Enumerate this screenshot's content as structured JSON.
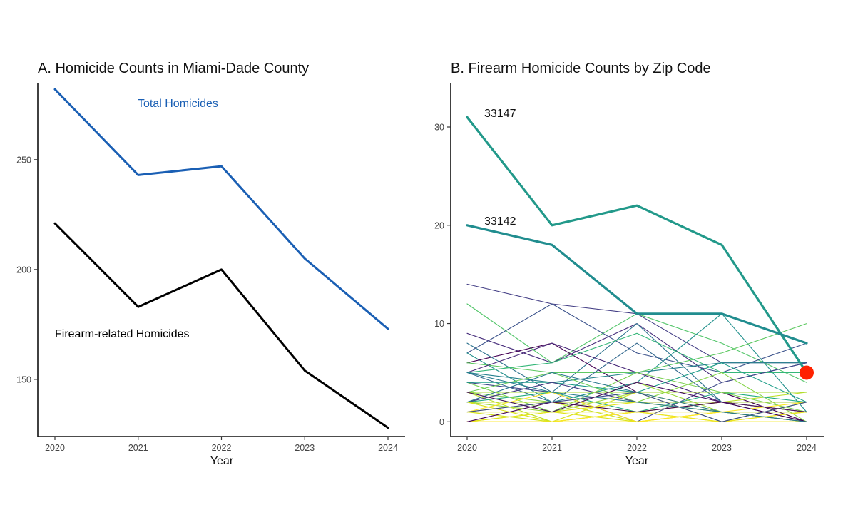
{
  "chart_data": [
    {
      "type": "line",
      "title": "A. Homicide Counts in Miami-Dade County",
      "xlabel": "Year",
      "ylabel": "",
      "x": [
        2020,
        2021,
        2022,
        2023,
        2024
      ],
      "x_ticks": [
        "2020",
        "2021",
        "2022",
        "2023",
        "2024"
      ],
      "y_ticks": [
        "150",
        "200",
        "250"
      ],
      "ylim": [
        124,
        285
      ],
      "grid": false,
      "legend": "none",
      "series": [
        {
          "name": "Total Homicides",
          "values": [
            282,
            243,
            247,
            205,
            173
          ],
          "color": "#1a5fb4"
        },
        {
          "name": "Firearm-related Homicides",
          "values": [
            221,
            183,
            200,
            154,
            128
          ],
          "color": "#000000"
        }
      ]
    },
    {
      "type": "line",
      "title": "B. Firearm Homicide Counts by Zip Code",
      "xlabel": "Year",
      "ylabel": "",
      "x": [
        2020,
        2021,
        2022,
        2023,
        2024
      ],
      "x_ticks": [
        "2020",
        "2021",
        "2022",
        "2023",
        "2024"
      ],
      "y_ticks": [
        "0",
        "10",
        "20",
        "30"
      ],
      "ylim": [
        -1.5,
        34.5
      ],
      "grid": false,
      "legend": "none",
      "highlight_point": {
        "x": 2024,
        "y": 5,
        "color": "#ff2200"
      },
      "series": [
        {
          "name": "33147",
          "values": [
            31,
            20,
            22,
            18,
            5
          ],
          "color": "#22998a",
          "highlight": true
        },
        {
          "name": "33142",
          "values": [
            20,
            18,
            11,
            11,
            8
          ],
          "color": "#218d8f",
          "highlight": true
        },
        {
          "values": [
            14,
            12,
            11,
            6,
            6
          ],
          "color": "#433e85"
        },
        {
          "values": [
            12,
            6,
            11,
            8,
            4
          ],
          "color": "#52c569"
        },
        {
          "values": [
            9,
            6,
            10,
            4,
            6
          ],
          "color": "#472d7b"
        },
        {
          "values": [
            8,
            3,
            10,
            2,
            0
          ],
          "color": "#2c728e"
        },
        {
          "values": [
            7,
            12,
            7,
            5,
            8
          ],
          "color": "#3b528b"
        },
        {
          "values": [
            7,
            2,
            4,
            11,
            1
          ],
          "color": "#21908c"
        },
        {
          "values": [
            6,
            8,
            3,
            3,
            0
          ],
          "color": "#440154"
        },
        {
          "values": [
            6,
            5,
            5,
            7,
            10
          ],
          "color": "#5ec962"
        },
        {
          "values": [
            5,
            8,
            5,
            2,
            1
          ],
          "color": "#482878"
        },
        {
          "values": [
            5,
            2,
            8,
            2,
            2
          ],
          "color": "#31688e"
        },
        {
          "values": [
            5,
            6,
            9,
            5,
            5
          ],
          "color": "#35b779"
        },
        {
          "values": [
            5,
            4,
            5,
            6,
            6
          ],
          "color": "#26828e"
        },
        {
          "values": [
            4,
            1,
            5,
            3,
            1
          ],
          "color": "#7ad151"
        },
        {
          "values": [
            4,
            3,
            0,
            4,
            6
          ],
          "color": "#3e4989"
        },
        {
          "values": [
            4,
            4,
            3,
            6,
            2
          ],
          "color": "#1f9e89"
        },
        {
          "values": [
            3,
            2,
            2,
            5,
            0
          ],
          "color": "#86d549"
        },
        {
          "values": [
            3,
            5,
            2,
            1,
            1
          ],
          "color": "#6ece58"
        },
        {
          "values": [
            3,
            1,
            3,
            0,
            2
          ],
          "color": "#a0da39"
        },
        {
          "values": [
            3,
            0,
            1,
            2,
            3
          ],
          "color": "#bddf26"
        },
        {
          "values": [
            2,
            3,
            1,
            3,
            2
          ],
          "color": "#25ac82"
        },
        {
          "values": [
            2,
            1,
            4,
            1,
            1
          ],
          "color": "#9bd93c"
        },
        {
          "values": [
            2,
            2,
            0,
            1,
            0
          ],
          "color": "#c8e020"
        },
        {
          "values": [
            2,
            4,
            2,
            2,
            1
          ],
          "color": "#443a83"
        },
        {
          "values": [
            2,
            0,
            3,
            1,
            0
          ],
          "color": "#d8e219"
        },
        {
          "values": [
            1,
            2,
            1,
            0,
            1
          ],
          "color": "#b5de2b"
        },
        {
          "values": [
            1,
            1,
            2,
            1,
            0
          ],
          "color": "#e5e419"
        },
        {
          "values": [
            1,
            0,
            1,
            2,
            1
          ],
          "color": "#d2e21b"
        },
        {
          "values": [
            1,
            3,
            0,
            1,
            2
          ],
          "color": "#fde725"
        },
        {
          "values": [
            0,
            1,
            1,
            0,
            1
          ],
          "color": "#f1e51d"
        },
        {
          "values": [
            0,
            0,
            1,
            1,
            0
          ],
          "color": "#fde725"
        },
        {
          "values": [
            0,
            1,
            0,
            0,
            0
          ],
          "color": "#dde318"
        },
        {
          "values": [
            0,
            0,
            0,
            1,
            1
          ],
          "color": "#fde725"
        },
        {
          "values": [
            0,
            0,
            0,
            0,
            0
          ],
          "color": "#fde725"
        },
        {
          "values": [
            1,
            1,
            1,
            1,
            1
          ],
          "color": "#e2e418"
        },
        {
          "values": [
            2,
            2,
            2,
            2,
            2
          ],
          "color": "#c2df23"
        },
        {
          "values": [
            3,
            3,
            3,
            3,
            3
          ],
          "color": "#a8db34"
        },
        {
          "values": [
            0,
            2,
            1,
            2,
            0
          ],
          "color": "#440154"
        },
        {
          "values": [
            1,
            2,
            3,
            0,
            2
          ],
          "color": "#3e4a89"
        },
        {
          "values": [
            5,
            3,
            2,
            1,
            0
          ],
          "color": "#287c8e"
        },
        {
          "values": [
            2,
            5,
            3,
            1,
            0
          ],
          "color": "#2a788e"
        },
        {
          "values": [
            3,
            1,
            4,
            2,
            1
          ],
          "color": "#471063"
        }
      ]
    }
  ]
}
